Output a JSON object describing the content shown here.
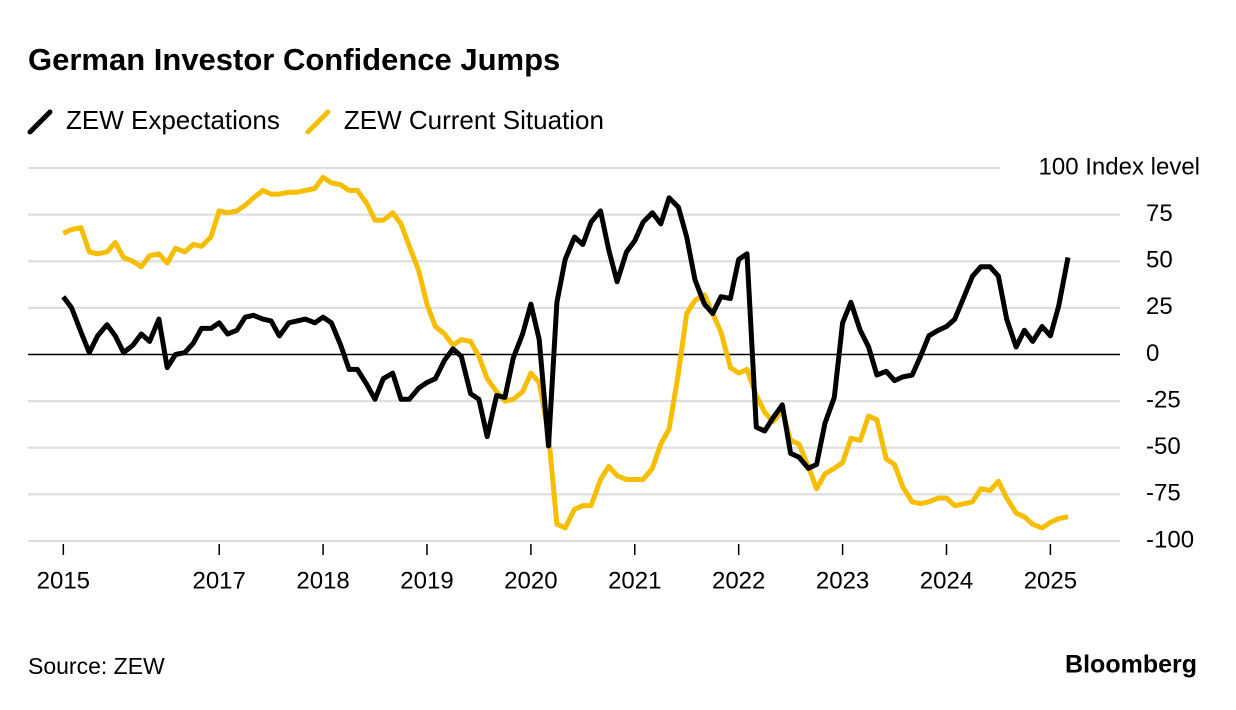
{
  "chart_data": {
    "type": "line",
    "title": "German Investor Confidence Jumps",
    "source": "Source: ZEW",
    "brand": "Bloomberg",
    "x": [
      2015.5,
      2015.58,
      2015.67,
      2015.75,
      2015.83,
      2015.92,
      2016.0,
      2016.08,
      2016.17,
      2016.25,
      2016.33,
      2016.42,
      2016.5,
      2016.58,
      2016.67,
      2016.75,
      2016.83,
      2016.92,
      2017.0,
      2017.08,
      2017.17,
      2017.25,
      2017.33,
      2017.42,
      2017.5,
      2017.58,
      2017.67,
      2017.75,
      2017.83,
      2017.92,
      2018.0,
      2018.08,
      2018.17,
      2018.25,
      2018.33,
      2018.42,
      2018.5,
      2018.58,
      2018.67,
      2018.75,
      2018.83,
      2018.92,
      2019.0,
      2019.08,
      2019.17,
      2019.25,
      2019.33,
      2019.42,
      2019.5,
      2019.58,
      2019.67,
      2019.75,
      2019.83,
      2019.92,
      2020.0,
      2020.08,
      2020.17,
      2020.25,
      2020.33,
      2020.42,
      2020.5,
      2020.58,
      2020.67,
      2020.75,
      2020.83,
      2020.92,
      2021.0,
      2021.08,
      2021.17,
      2021.25,
      2021.33,
      2021.42,
      2021.5,
      2021.58,
      2021.67,
      2021.75,
      2021.83,
      2021.92,
      2022.0,
      2022.08,
      2022.17,
      2022.25,
      2022.33,
      2022.42,
      2022.5,
      2022.58,
      2022.67,
      2022.75,
      2022.83,
      2022.92,
      2023.0,
      2023.08,
      2023.17,
      2023.25,
      2023.33,
      2023.42,
      2023.5,
      2023.58,
      2023.67,
      2023.75,
      2023.83,
      2023.92,
      2024.0,
      2024.08,
      2024.17,
      2024.25,
      2024.33,
      2024.42,
      2024.5,
      2024.58,
      2024.67,
      2024.75,
      2024.83,
      2024.92,
      2025.0,
      2025.08,
      2025.17
    ],
    "series": [
      {
        "name": "ZEW Expectations",
        "color": "#000000",
        "values": [
          31,
          25,
          12,
          1,
          10,
          16,
          10,
          1,
          5,
          11,
          7,
          19,
          -7,
          0,
          1,
          6,
          14,
          14,
          17,
          11,
          13,
          20,
          21,
          19,
          18,
          10,
          17,
          18,
          19,
          17,
          20,
          17,
          5,
          -8,
          -8,
          -16,
          -24,
          -13,
          -10,
          -24,
          -24,
          -18,
          -15,
          -13,
          -3,
          3,
          -1,
          -21,
          -24,
          -44,
          -22,
          -23,
          -2,
          11,
          27,
          8,
          -49,
          28,
          51,
          63,
          59,
          71,
          77,
          56,
          39,
          55,
          61,
          71,
          76,
          70,
          84,
          79,
          63,
          40,
          27,
          22,
          31,
          30,
          51,
          54,
          -39,
          -41,
          -34,
          -27,
          -53,
          -55,
          -61,
          -59,
          -37,
          -23,
          17,
          28,
          13,
          4,
          -11,
          -9,
          -14,
          -12,
          -11,
          -1,
          10,
          13,
          15,
          19,
          31,
          42,
          47,
          47,
          42,
          19,
          4,
          13,
          7,
          15,
          10,
          26,
          52
        ]
      },
      {
        "name": "ZEW Current Situation",
        "color": "#f5be00",
        "values": [
          65,
          67,
          68,
          55,
          54,
          55,
          60,
          52,
          50,
          47,
          53,
          54,
          49,
          57,
          55,
          59,
          58,
          63,
          77,
          76,
          77,
          80,
          84,
          88,
          86,
          86,
          87,
          87,
          88,
          89,
          95,
          92,
          91,
          88,
          88,
          81,
          72,
          72,
          76,
          70,
          58,
          45,
          27,
          15,
          11,
          5,
          8,
          7,
          -1,
          -13,
          -20,
          -25,
          -24,
          -20,
          -10,
          -15,
          -43,
          -91,
          -93,
          -83,
          -81,
          -81,
          -67,
          -60,
          -65,
          -67,
          -67,
          -67,
          -61,
          -48,
          -40,
          -10,
          22,
          29,
          32,
          22,
          12,
          -7,
          -10,
          -8,
          -22,
          -31,
          -36,
          -30,
          -46,
          -48,
          -60,
          -72,
          -64,
          -61,
          -58,
          -45,
          -46,
          -33,
          -35,
          -56,
          -59,
          -71,
          -79,
          -80,
          -79,
          -77,
          -77,
          -81,
          -80,
          -79,
          -72,
          -73,
          -68,
          -77,
          -85,
          -87,
          -91,
          -93,
          -90,
          -88,
          -87
        ]
      }
    ],
    "xlim": [
      2015.16,
      2025.67
    ],
    "xticks": [
      {
        "value": 2015.5,
        "label": "2015"
      },
      2017,
      2018,
      2019,
      2020,
      2021,
      2022,
      2023,
      2024,
      2025
    ],
    "ylim": [
      -100,
      100
    ],
    "yticks": [
      -100,
      -75,
      -50,
      -25,
      0,
      25,
      50,
      75,
      {
        "value": 100,
        "label": "100 Index level"
      }
    ],
    "grid": true
  }
}
